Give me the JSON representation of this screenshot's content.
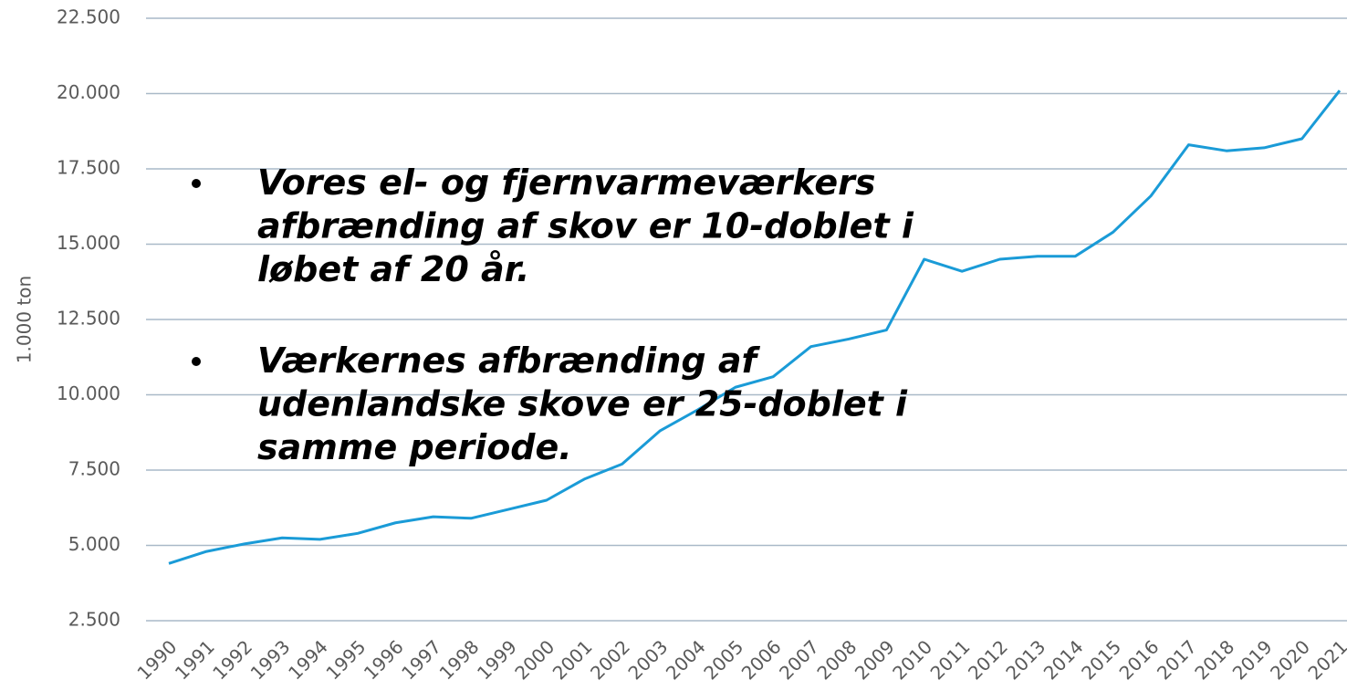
{
  "chart_data": {
    "type": "line",
    "y_label": "1.000 ton",
    "categories": [
      "1990",
      "1991",
      "1992",
      "1993",
      "1994",
      "1995",
      "1996",
      "1997",
      "1998",
      "1999",
      "2000",
      "2001",
      "2002",
      "2003",
      "2004",
      "2005",
      "2006",
      "2007",
      "2008",
      "2009",
      "2010",
      "2011",
      "2012",
      "2013",
      "2014",
      "2015",
      "2016",
      "2017",
      "2018",
      "2019",
      "2020",
      "2021"
    ],
    "series": [
      {
        "color": "#1a9bd7",
        "values": [
          4400,
          4800,
          5050,
          5250,
          5200,
          5400,
          5750,
          5950,
          5900,
          6200,
          6500,
          7200,
          7700,
          8800,
          9500,
          10250,
          10600,
          11600,
          11850,
          12150,
          14500,
          14100,
          14500,
          14600,
          14600,
          15400,
          16600,
          18300,
          18100,
          18200,
          18500,
          20100
        ]
      }
    ],
    "ylim": [
      2500,
      22500
    ],
    "yticks": [
      {
        "value": 2500,
        "label": "2.500"
      },
      {
        "value": 5000,
        "label": "5.000"
      },
      {
        "value": 7500,
        "label": "7.500"
      },
      {
        "value": 10000,
        "label": "10.000"
      },
      {
        "value": 12500,
        "label": "12.500"
      },
      {
        "value": 15000,
        "label": "15.000"
      },
      {
        "value": 17500,
        "label": "17.500"
      },
      {
        "value": 20000,
        "label": "20.000"
      },
      {
        "value": 22500,
        "label": "22.500"
      }
    ],
    "grid": true,
    "annotations": [
      [
        "Vores el- og fjernvarmeværkers",
        "afbrænding af skov er 10-doblet i",
        "løbet af 20 år."
      ],
      [
        "Værkernes afbrænding af",
        "udenlandske skove er 25-doblet i",
        "samme periode."
      ]
    ]
  }
}
